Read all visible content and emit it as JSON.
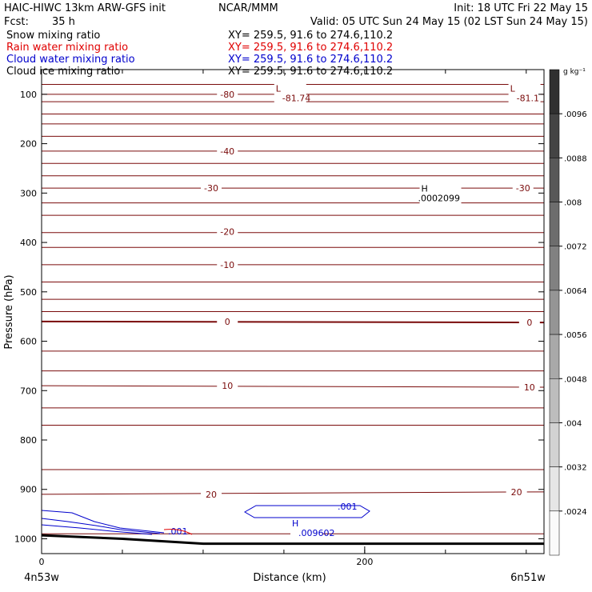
{
  "header": {
    "model": "HAIC-HIWC 13km ARW-GFS init",
    "org": "NCAR/MMM",
    "init": "Init: 18 UTC Fri 22 May 15",
    "fcst_label": "Fcst:",
    "fcst_value": "35 h",
    "valid": "Valid: 05 UTC Sun 24 May 15 (02 LST Sun 24 May 15)"
  },
  "legend": [
    {
      "name": "Snow mixing ratio",
      "xy": "XY=  259.5, 91.6 to 274.6,110.2",
      "color": "#000000"
    },
    {
      "name": "Rain water mixing ratio",
      "xy": "XY=  259.5, 91.6 to 274.6,110.2",
      "color": "#e00000"
    },
    {
      "name": "Cloud water mixing ratio",
      "xy": "XY=  259.5, 91.6 to 274.6,110.2",
      "color": "#0000cc"
    },
    {
      "name": "Cloud ice mixing ratio",
      "xy": "XY=  259.5, 91.6 to 274.6,110.2",
      "color": "#000000"
    }
  ],
  "colorbar": {
    "unit": "g kg⁻¹",
    "ticks": [
      ".0096",
      ".0088",
      ".008",
      ".0072",
      ".0064",
      ".0056",
      ".0048",
      ".004",
      ".0032",
      ".0024"
    ],
    "min": 0.002,
    "max": 0.01
  },
  "chart_data": {
    "type": "line",
    "xlabel": "Distance (km)",
    "ylabel": "Pressure (hPa)",
    "x_ticks": [
      0,
      200
    ],
    "x_range": [
      0,
      311
    ],
    "y_ticks": [
      100,
      200,
      300,
      400,
      500,
      600,
      700,
      800,
      900,
      1000
    ],
    "ylim": [
      50,
      1030
    ],
    "x_endpoint_labels": {
      "left": "4n53w",
      "right": "6n51w"
    },
    "temperature_contours": [
      {
        "value": -80,
        "label": "-80",
        "points": [
          [
            0,
            100
          ],
          [
            311,
            100
          ]
        ]
      },
      {
        "value": -40,
        "label": "-40",
        "points": [
          [
            0,
            215
          ],
          [
            311,
            215
          ]
        ]
      },
      {
        "value": -30,
        "label": "-30",
        "points": [
          [
            0,
            290
          ],
          [
            311,
            290
          ]
        ]
      },
      {
        "value": -20,
        "label": "-20",
        "points": [
          [
            0,
            380
          ],
          [
            311,
            380
          ]
        ]
      },
      {
        "value": -10,
        "label": "-10",
        "points": [
          [
            0,
            445
          ],
          [
            311,
            445
          ]
        ]
      },
      {
        "value": 0,
        "label": "0",
        "points": [
          [
            0,
            560
          ],
          [
            311,
            562
          ]
        ]
      },
      {
        "value": 10,
        "label": "10",
        "points": [
          [
            0,
            690
          ],
          [
            311,
            693
          ]
        ]
      },
      {
        "value": 20,
        "label": "20",
        "points": [
          [
            0,
            910
          ],
          [
            311,
            905
          ]
        ]
      }
    ],
    "unlabeled_contour_pressures": [
      80,
      115,
      140,
      160,
      185,
      240,
      265,
      320,
      345,
      410,
      480,
      515,
      540,
      620,
      660,
      735,
      770,
      860,
      990
    ],
    "surface_profile": [
      [
        0,
        993
      ],
      [
        50,
        1000
      ],
      [
        100,
        1010
      ],
      [
        150,
        1010
      ],
      [
        200,
        1010
      ],
      [
        250,
        1010
      ],
      [
        311,
        1010
      ]
    ],
    "extrema": [
      {
        "type": "L",
        "value": "-81.74",
        "x": 145,
        "p": 98
      },
      {
        "type": "L",
        "value": "-81.1",
        "x": 290,
        "p": 98
      },
      {
        "type": "H",
        "value": ".0002099",
        "x": 235,
        "p": 300
      },
      {
        "type": "H",
        "value": ".009602",
        "x": 155,
        "p": 978
      }
    ],
    "cloud_water_labels": [
      ".001",
      ".001"
    ]
  }
}
